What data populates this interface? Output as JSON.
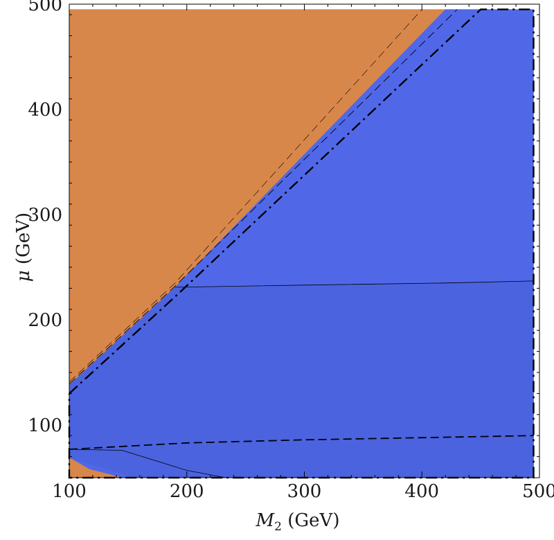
{
  "chart_data": {
    "type": "area",
    "title": "",
    "xlabel_var": "M",
    "xlabel_sub": "2",
    "xlabel_unit": " (GeV)",
    "ylabel_var": "μ",
    "ylabel_unit": " (GeV)",
    "xlim": [
      100,
      500
    ],
    "ylim": [
      50,
      500
    ],
    "xticks": [
      100,
      200,
      300,
      400,
      500
    ],
    "yticks": [
      100,
      200,
      300,
      400,
      500
    ],
    "grid": false,
    "colors": {
      "orange_region": "#D8874A",
      "blue_region": "#5068E8",
      "blue_dark_region": "#4B63DF",
      "curve": "#000000"
    },
    "regions": [
      {
        "fill": "orange_region",
        "points": [
          [
            100,
            50
          ],
          [
            100,
            495
          ],
          [
            420,
            495
          ],
          [
            145,
            50
          ]
        ]
      },
      {
        "fill": "blue_region",
        "points": [
          [
            100,
            138
          ],
          [
            190,
            231
          ],
          [
            420,
            495
          ],
          [
            495,
            495
          ],
          [
            495,
            50
          ],
          [
            233,
            50
          ],
          [
            150,
            77
          ],
          [
            100,
            77
          ]
        ]
      },
      {
        "fill": "blue_dark_region",
        "points": [
          [
            100,
            50
          ],
          [
            100,
            77
          ],
          [
            150,
            77
          ],
          [
            233,
            50
          ]
        ]
      },
      {
        "fill": "blue_dark_region",
        "points": [
          [
            100,
            77
          ],
          [
            100,
            138
          ],
          [
            190,
            231
          ],
          [
            300,
            233
          ],
          [
            495,
            237
          ],
          [
            495,
            50
          ],
          [
            233,
            50
          ],
          [
            150,
            77
          ]
        ]
      },
      {
        "fill": "blue_region",
        "points": [
          [
            100,
            50
          ],
          [
            100,
            69
          ],
          [
            155,
            50
          ]
        ]
      },
      {
        "fill": "orange_region",
        "points": [
          [
            100,
            50
          ],
          [
            100,
            69
          ],
          [
            117,
            58
          ],
          [
            145,
            50
          ]
        ]
      }
    ],
    "curves": [
      {
        "dash": "solid",
        "width": 0.8,
        "points": [
          [
            190,
            231
          ],
          [
            300,
            233
          ],
          [
            420,
            235
          ],
          [
            495,
            237
          ]
        ]
      },
      {
        "dash": "solid",
        "width": 0.8,
        "points": [
          [
            100,
            77
          ],
          [
            145,
            76
          ],
          [
            200,
            57
          ],
          [
            233,
            50
          ]
        ]
      },
      {
        "dash": "dashed",
        "width": 1.8,
        "points": [
          [
            100,
            77
          ],
          [
            200,
            83
          ],
          [
            300,
            86
          ],
          [
            400,
            88
          ],
          [
            495,
            90
          ]
        ]
      },
      {
        "dash": "dashdot",
        "width": 2.4,
        "points": [
          [
            100,
            130
          ],
          [
            190,
            222
          ],
          [
            450,
            495
          ],
          [
            495,
            495
          ],
          [
            495,
            50
          ],
          [
            100,
            50
          ],
          [
            100,
            130
          ]
        ]
      },
      {
        "dash": "dashed",
        "width": 0.9,
        "points": [
          [
            100,
            139
          ],
          [
            190,
            232
          ],
          [
            430,
            495
          ]
        ]
      },
      {
        "dash": "dashed",
        "width": 0.6,
        "points": [
          [
            100,
            141
          ],
          [
            190,
            235
          ],
          [
            400,
            495
          ]
        ]
      }
    ]
  }
}
